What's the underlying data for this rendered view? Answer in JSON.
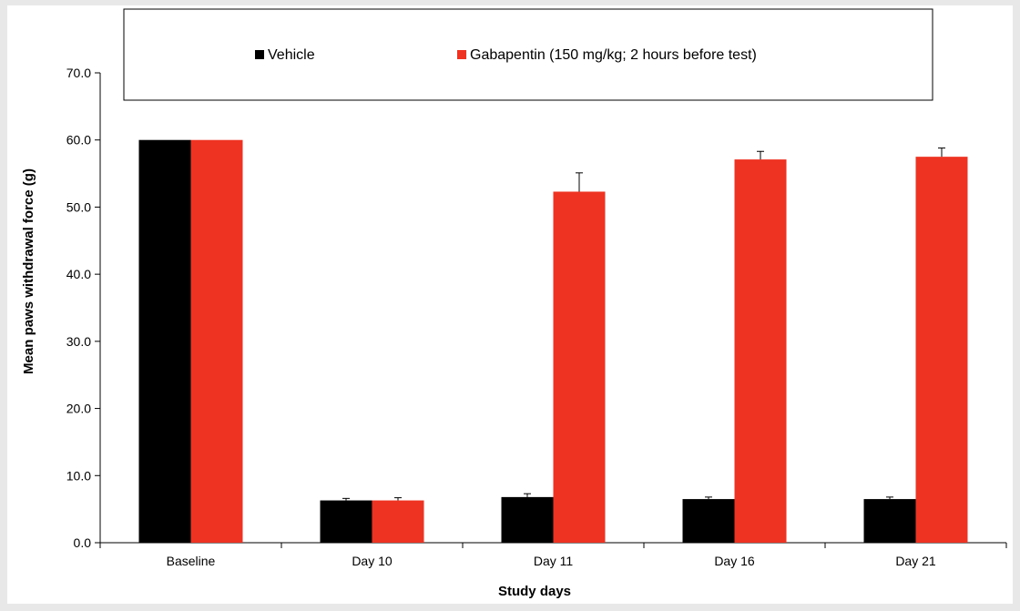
{
  "chart_data": {
    "type": "bar",
    "title": "",
    "xlabel": "Study days",
    "ylabel": "Mean paws withdrawal force (g)",
    "ylim": [
      0,
      70
    ],
    "yticks": [
      "0.0",
      "10.0",
      "20.0",
      "30.0",
      "40.0",
      "50.0",
      "60.0",
      "70.0"
    ],
    "categories": [
      "Baseline",
      "Day 10",
      "Day 11",
      "Day 16",
      "Day 21"
    ],
    "series": [
      {
        "name": "Vehicle",
        "color": "#000000",
        "values": [
          60.0,
          6.3,
          6.8,
          6.5,
          6.5
        ],
        "errors": [
          0,
          0.3,
          0.5,
          0.3,
          0.3
        ]
      },
      {
        "name": "Gabapentin (150 mg/kg; 2 hours before test)",
        "color": "#ee3322",
        "values": [
          60.0,
          6.3,
          52.3,
          57.1,
          57.5
        ],
        "errors": [
          0,
          0.4,
          2.8,
          1.2,
          1.3
        ]
      }
    ],
    "legend": "top",
    "grid": false
  }
}
